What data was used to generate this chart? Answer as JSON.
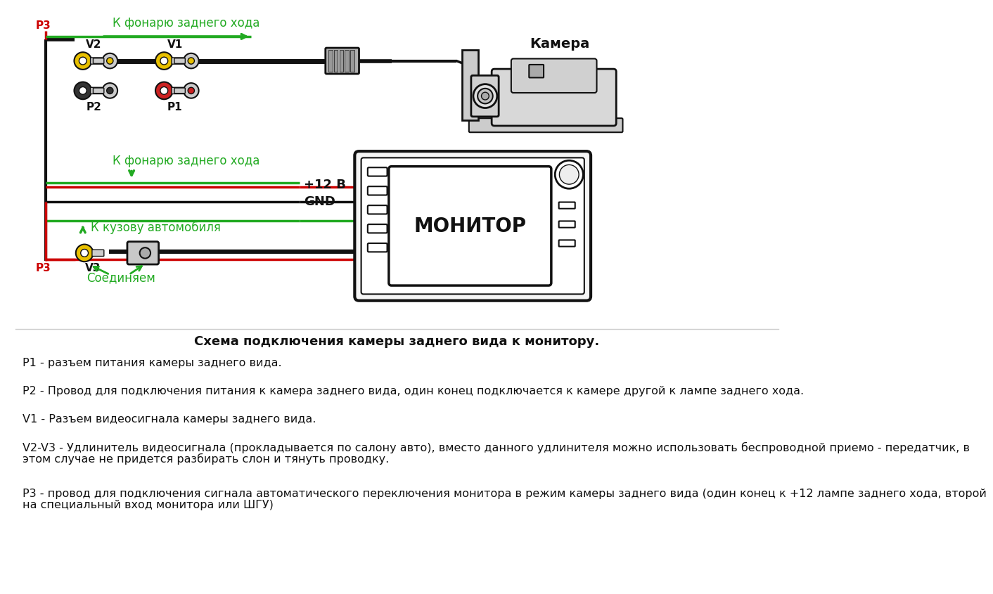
{
  "bg_color": "#ffffff",
  "title_text": "Схема подключения камеры заднего вида к монитору.",
  "label_k_fonarju": "К фонарю заднего хода",
  "label_k_fonarju2": "К фонарю заднего хода",
  "label_k_kuzovu": "К кузову автомобиля",
  "label_soedinjaem": "Соединяем",
  "label_kamera": "Камера",
  "label_monitor": "МОНИТОР",
  "label_12v": "+12 В",
  "label_gnd": "GND",
  "label_p1": "P1",
  "label_p2": "P2",
  "label_p3": "P3",
  "label_v1": "V1",
  "label_v2": "V2",
  "label_v3": "V3",
  "green_color": "#22aa22",
  "red_color": "#cc0000",
  "black_color": "#111111",
  "gray_color": "#999999",
  "yellow_color": "#e8c000",
  "line1": "P1 - разъем питания камеры заднего вида.",
  "line2": "P2 - Провод для подключения питания к камера заднего вида, один конец подключается к камере другой к лампе заднего хода.",
  "line3": "V1 - Разъем видеосигнала камеры заднего вида.",
  "line4": "V2-V3 - Удлинитель видеосигнала (прокладывается по салону авто), вместо данного удлинителя можно использовать беспроводной приемо - передатчик, в\nэтом случае не придется разбирать слон и тянуть проводку.",
  "line5": "Р3 - провод для подключения сигнала автоматического переключения монитора в режим камеры заднего вида (один конец к +12 лампе заднего хода, второй\nна специальный вход монитора или ШГУ)"
}
